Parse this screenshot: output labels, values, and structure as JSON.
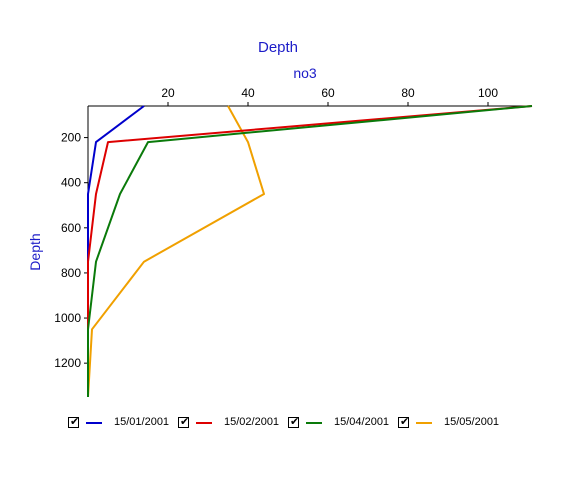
{
  "chart_data": {
    "type": "line",
    "title": "Depth",
    "xlabel": "no3",
    "ylabel": "Depth",
    "xlim": [
      0,
      110
    ],
    "ylim": [
      1350,
      60
    ],
    "x_ticks": [
      20,
      40,
      60,
      80,
      100
    ],
    "y_ticks": [
      200,
      400,
      600,
      800,
      1000,
      1200
    ],
    "legend_position": "bottom",
    "series": [
      {
        "name": "15/01/2001",
        "color": "#0000cc",
        "checked": true,
        "points": [
          [
            14,
            60
          ],
          [
            2,
            220
          ],
          [
            0,
            450
          ],
          [
            0,
            750
          ],
          [
            0,
            1000
          ],
          [
            0,
            1350
          ]
        ]
      },
      {
        "name": "15/02/2001",
        "color": "#dd0000",
        "checked": true,
        "points": [
          [
            111,
            60
          ],
          [
            5,
            220
          ],
          [
            2,
            450
          ],
          [
            0,
            750
          ],
          [
            0,
            1050
          ],
          [
            0,
            1350
          ]
        ]
      },
      {
        "name": "15/04/2001",
        "color": "#0a7a0a",
        "checked": true,
        "points": [
          [
            111,
            60
          ],
          [
            15,
            220
          ],
          [
            8,
            450
          ],
          [
            2,
            750
          ],
          [
            0,
            1050
          ],
          [
            0,
            1350
          ]
        ]
      },
      {
        "name": "15/05/2001",
        "color": "#f0a000",
        "checked": true,
        "points": [
          [
            35,
            60
          ],
          [
            40,
            220
          ],
          [
            44,
            450
          ],
          [
            14,
            750
          ],
          [
            1,
            1050
          ],
          [
            0,
            1350
          ]
        ]
      }
    ]
  }
}
